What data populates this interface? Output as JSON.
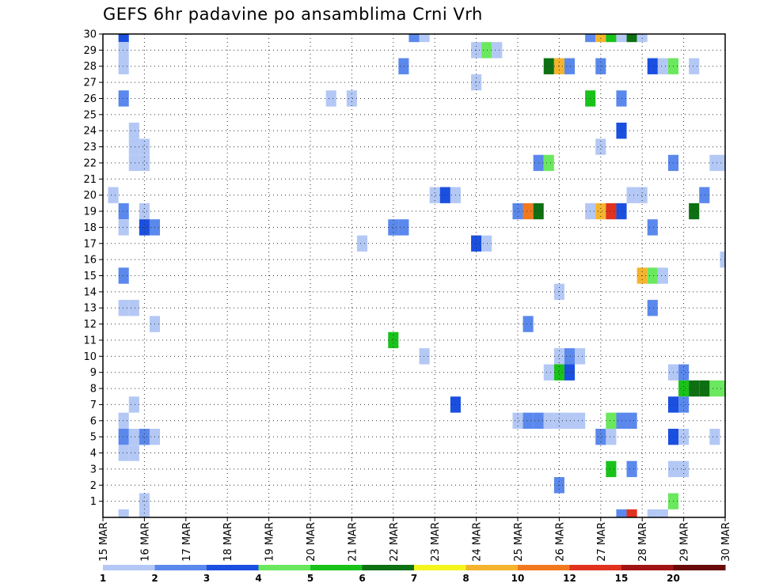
{
  "chart_data": {
    "type": "heatmap",
    "title": "GEFS 6hr padavine po ansamblima Crni Vrh",
    "x_tick_labels": [
      "15 MAR",
      "16 MAR",
      "17 MAR",
      "18 MAR",
      "19 MAR",
      "20 MAR",
      "21 MAR",
      "22 MAR",
      "23 MAR",
      "24 MAR",
      "25 MAR",
      "26 MAR",
      "27 MAR",
      "28 MAR",
      "29 MAR",
      "30 MAR"
    ],
    "y_tick_labels": [
      "1",
      "2",
      "3",
      "4",
      "5",
      "6",
      "7",
      "8",
      "9",
      "10",
      "11",
      "12",
      "13",
      "14",
      "15",
      "16",
      "17",
      "18",
      "19",
      "20",
      "21",
      "22",
      "23",
      "24",
      "25",
      "26",
      "27",
      "28",
      "29",
      "30"
    ],
    "xlim": [
      0,
      60
    ],
    "ylim": [
      0,
      30
    ],
    "x_step": "6 hr",
    "grid": true,
    "colorbar": {
      "labels": [
        "1",
        "2",
        "3",
        "4",
        "5",
        "6",
        "7",
        "8",
        "10",
        "12",
        "15",
        "20"
      ],
      "colors": [
        "#b4c8f5",
        "#5a88ec",
        "#1a4fe0",
        "#6ae85e",
        "#19c219",
        "#0d7012",
        "#f5f51e",
        "#f5b42d",
        "#f2781e",
        "#e0321e",
        "#a21414",
        "#6a0a0a"
      ],
      "position": "bottom"
    },
    "cells": [
      {
        "x": 2,
        "y": 30,
        "bin": 2
      },
      {
        "x": 2,
        "y": 29,
        "bin": 0
      },
      {
        "x": 2,
        "y": 28,
        "bin": 0
      },
      {
        "x": 2,
        "y": 26,
        "bin": 1
      },
      {
        "x": 3,
        "y": 24,
        "bin": 0
      },
      {
        "x": 3,
        "y": 23,
        "bin": 0
      },
      {
        "x": 4,
        "y": 23,
        "bin": 0
      },
      {
        "x": 3,
        "y": 22,
        "bin": 0
      },
      {
        "x": 4,
        "y": 22,
        "bin": 0
      },
      {
        "x": 1,
        "y": 20,
        "bin": 0
      },
      {
        "x": 2,
        "y": 19,
        "bin": 1
      },
      {
        "x": 4,
        "y": 19,
        "bin": 0
      },
      {
        "x": 2,
        "y": 18,
        "bin": 0
      },
      {
        "x": 4,
        "y": 18,
        "bin": 2
      },
      {
        "x": 5,
        "y": 18,
        "bin": 1
      },
      {
        "x": 2,
        "y": 15,
        "bin": 1
      },
      {
        "x": 2,
        "y": 13,
        "bin": 0
      },
      {
        "x": 3,
        "y": 13,
        "bin": 0
      },
      {
        "x": 5,
        "y": 12,
        "bin": 0
      },
      {
        "x": 3,
        "y": 7,
        "bin": 0
      },
      {
        "x": 2,
        "y": 6,
        "bin": 0
      },
      {
        "x": 2,
        "y": 5,
        "bin": 1
      },
      {
        "x": 3,
        "y": 5,
        "bin": 0
      },
      {
        "x": 4,
        "y": 5,
        "bin": 1
      },
      {
        "x": 5,
        "y": 5,
        "bin": 0
      },
      {
        "x": 2,
        "y": 4,
        "bin": 0
      },
      {
        "x": 3,
        "y": 4,
        "bin": 0
      },
      {
        "x": 4,
        "y": 1,
        "bin": 0
      },
      {
        "x": 4,
        "y": 0,
        "bin": 0
      },
      {
        "x": 2,
        "y": 0,
        "bin": 0
      },
      {
        "x": 22,
        "y": 26,
        "bin": 0
      },
      {
        "x": 24,
        "y": 26,
        "bin": 0
      },
      {
        "x": 25,
        "y": 17,
        "bin": 0
      },
      {
        "x": 28,
        "y": 18,
        "bin": 1
      },
      {
        "x": 29,
        "y": 18,
        "bin": 1
      },
      {
        "x": 29,
        "y": 28,
        "bin": 1
      },
      {
        "x": 28,
        "y": 11,
        "bin": 4
      },
      {
        "x": 30,
        "y": 30,
        "bin": 1
      },
      {
        "x": 31,
        "y": 30,
        "bin": 0
      },
      {
        "x": 31,
        "y": 10,
        "bin": 0
      },
      {
        "x": 32,
        "y": 20,
        "bin": 0
      },
      {
        "x": 33,
        "y": 20,
        "bin": 2
      },
      {
        "x": 34,
        "y": 20,
        "bin": 0
      },
      {
        "x": 34,
        "y": 7,
        "bin": 2
      },
      {
        "x": 36,
        "y": 29,
        "bin": 0
      },
      {
        "x": 37,
        "y": 29,
        "bin": 3
      },
      {
        "x": 38,
        "y": 29,
        "bin": 0
      },
      {
        "x": 36,
        "y": 27,
        "bin": 0
      },
      {
        "x": 36,
        "y": 17,
        "bin": 2
      },
      {
        "x": 37,
        "y": 17,
        "bin": 0
      },
      {
        "x": 40,
        "y": 19,
        "bin": 1
      },
      {
        "x": 41,
        "y": 19,
        "bin": 8
      },
      {
        "x": 42,
        "y": 19,
        "bin": 5
      },
      {
        "x": 40,
        "y": 6,
        "bin": 0
      },
      {
        "x": 41,
        "y": 6,
        "bin": 1
      },
      {
        "x": 42,
        "y": 6,
        "bin": 1
      },
      {
        "x": 41,
        "y": 12,
        "bin": 1
      },
      {
        "x": 42,
        "y": 22,
        "bin": 1
      },
      {
        "x": 43,
        "y": 22,
        "bin": 3
      },
      {
        "x": 43,
        "y": 28,
        "bin": 5
      },
      {
        "x": 44,
        "y": 28,
        "bin": 7
      },
      {
        "x": 45,
        "y": 28,
        "bin": 1
      },
      {
        "x": 44,
        "y": 14,
        "bin": 0
      },
      {
        "x": 44,
        "y": 10,
        "bin": 0
      },
      {
        "x": 45,
        "y": 10,
        "bin": 1
      },
      {
        "x": 46,
        "y": 10,
        "bin": 0
      },
      {
        "x": 43,
        "y": 9,
        "bin": 0
      },
      {
        "x": 44,
        "y": 9,
        "bin": 4
      },
      {
        "x": 45,
        "y": 9,
        "bin": 2
      },
      {
        "x": 43,
        "y": 6,
        "bin": 0
      },
      {
        "x": 44,
        "y": 6,
        "bin": 0
      },
      {
        "x": 45,
        "y": 6,
        "bin": 0
      },
      {
        "x": 46,
        "y": 6,
        "bin": 0
      },
      {
        "x": 44,
        "y": 2,
        "bin": 1
      },
      {
        "x": 47,
        "y": 30,
        "bin": 1
      },
      {
        "x": 48,
        "y": 30,
        "bin": 7
      },
      {
        "x": 49,
        "y": 30,
        "bin": 4
      },
      {
        "x": 50,
        "y": 30,
        "bin": 0
      },
      {
        "x": 51,
        "y": 30,
        "bin": 5
      },
      {
        "x": 52,
        "y": 30,
        "bin": 0
      },
      {
        "x": 47,
        "y": 26,
        "bin": 4
      },
      {
        "x": 48,
        "y": 28,
        "bin": 1
      },
      {
        "x": 48,
        "y": 23,
        "bin": 0
      },
      {
        "x": 50,
        "y": 26,
        "bin": 1
      },
      {
        "x": 50,
        "y": 24,
        "bin": 2
      },
      {
        "x": 47,
        "y": 19,
        "bin": 0
      },
      {
        "x": 48,
        "y": 19,
        "bin": 7
      },
      {
        "x": 49,
        "y": 19,
        "bin": 9
      },
      {
        "x": 50,
        "y": 19,
        "bin": 2
      },
      {
        "x": 48,
        "y": 5,
        "bin": 1
      },
      {
        "x": 49,
        "y": 5,
        "bin": 0
      },
      {
        "x": 49,
        "y": 6,
        "bin": 3
      },
      {
        "x": 50,
        "y": 6,
        "bin": 1
      },
      {
        "x": 51,
        "y": 6,
        "bin": 1
      },
      {
        "x": 49,
        "y": 3,
        "bin": 4
      },
      {
        "x": 51,
        "y": 3,
        "bin": 1
      },
      {
        "x": 50,
        "y": 0,
        "bin": 1
      },
      {
        "x": 51,
        "y": 0,
        "bin": 9
      },
      {
        "x": 51,
        "y": 20,
        "bin": 0
      },
      {
        "x": 52,
        "y": 20,
        "bin": 0
      },
      {
        "x": 52,
        "y": 15,
        "bin": 7
      },
      {
        "x": 53,
        "y": 15,
        "bin": 3
      },
      {
        "x": 54,
        "y": 15,
        "bin": 0
      },
      {
        "x": 53,
        "y": 28,
        "bin": 2
      },
      {
        "x": 54,
        "y": 28,
        "bin": 0
      },
      {
        "x": 55,
        "y": 28,
        "bin": 3
      },
      {
        "x": 57,
        "y": 28,
        "bin": 0
      },
      {
        "x": 53,
        "y": 18,
        "bin": 1
      },
      {
        "x": 53,
        "y": 13,
        "bin": 1
      },
      {
        "x": 53,
        "y": 0,
        "bin": 0
      },
      {
        "x": 54,
        "y": 0,
        "bin": 0
      },
      {
        "x": 55,
        "y": 22,
        "bin": 1
      },
      {
        "x": 57,
        "y": 19,
        "bin": 5
      },
      {
        "x": 58,
        "y": 20,
        "bin": 1
      },
      {
        "x": 59,
        "y": 22,
        "bin": 0
      },
      {
        "x": 60,
        "y": 22,
        "bin": 0
      },
      {
        "x": 55,
        "y": 9,
        "bin": 0
      },
      {
        "x": 56,
        "y": 9,
        "bin": 1
      },
      {
        "x": 56,
        "y": 8,
        "bin": 4
      },
      {
        "x": 57,
        "y": 8,
        "bin": 5
      },
      {
        "x": 58,
        "y": 8,
        "bin": 5
      },
      {
        "x": 59,
        "y": 8,
        "bin": 3
      },
      {
        "x": 60,
        "y": 8,
        "bin": 3
      },
      {
        "x": 55,
        "y": 7,
        "bin": 2
      },
      {
        "x": 56,
        "y": 7,
        "bin": 1
      },
      {
        "x": 55,
        "y": 5,
        "bin": 2
      },
      {
        "x": 56,
        "y": 5,
        "bin": 0
      },
      {
        "x": 59,
        "y": 5,
        "bin": 0
      },
      {
        "x": 56,
        "y": 3,
        "bin": 0
      },
      {
        "x": 55,
        "y": 3,
        "bin": 0
      },
      {
        "x": 55,
        "y": 1,
        "bin": 3
      },
      {
        "x": 60,
        "y": 16,
        "bin": 0
      }
    ]
  }
}
